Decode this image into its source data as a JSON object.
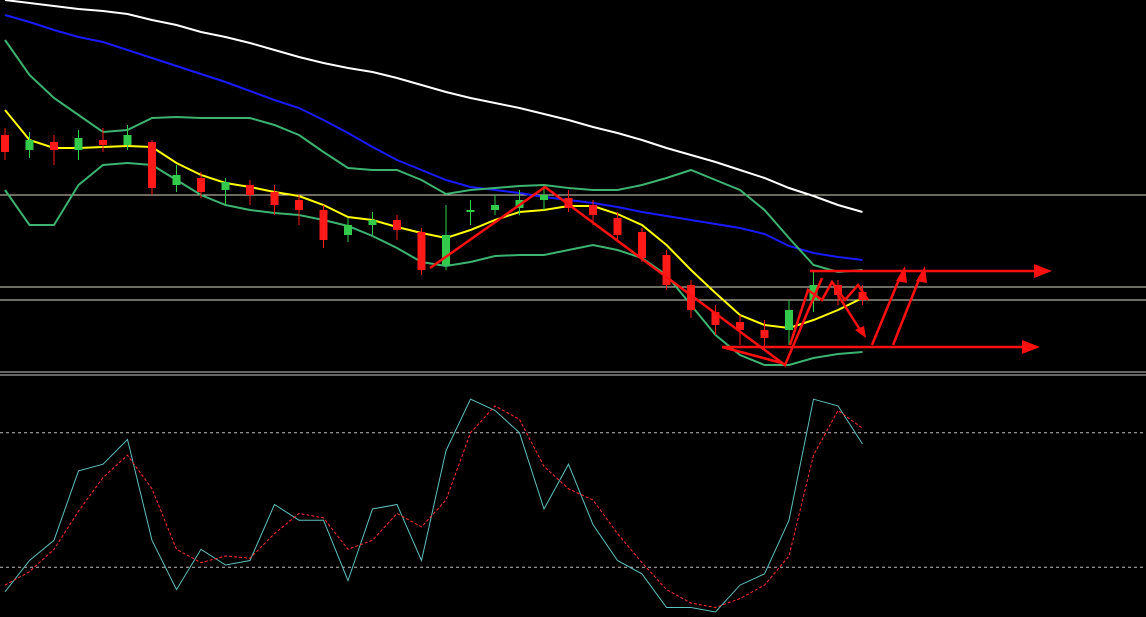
{
  "chart_data": [
    {
      "type": "candlestick",
      "ylim": [
        0,
        375
      ],
      "open": [
        240,
        225,
        233,
        225,
        235,
        230,
        233,
        190,
        197,
        185,
        190,
        183,
        175,
        165,
        140,
        150,
        155,
        143,
        110,
        163,
        165,
        167,
        175,
        177,
        170,
        157,
        143,
        120,
        90,
        63,
        53,
        45,
        45,
        75,
        90,
        83
      ],
      "close": [
        223,
        235,
        225,
        237,
        230,
        240,
        187,
        200,
        183,
        193,
        180,
        170,
        165,
        135,
        150,
        155,
        145,
        105,
        140,
        165,
        170,
        175,
        180,
        167,
        160,
        140,
        117,
        90,
        65,
        50,
        45,
        37,
        65,
        90,
        80,
        75
      ],
      "high": [
        247,
        243,
        240,
        245,
        247,
        250,
        235,
        210,
        203,
        197,
        195,
        190,
        180,
        170,
        157,
        163,
        160,
        147,
        170,
        175,
        180,
        185,
        190,
        185,
        175,
        163,
        147,
        125,
        95,
        70,
        60,
        55,
        75,
        105,
        95,
        90
      ],
      "low": [
        215,
        217,
        210,
        215,
        223,
        225,
        180,
        183,
        177,
        170,
        170,
        160,
        150,
        127,
        133,
        140,
        135,
        100,
        105,
        150,
        160,
        160,
        165,
        163,
        150,
        135,
        113,
        85,
        57,
        40,
        30,
        25,
        30,
        63,
        70,
        70
      ],
      "up_color": "#33c94a",
      "down_color": "#ff1a1a",
      "series": [
        {
          "color": "#ffffff",
          "values": [
            375,
            372,
            369,
            366,
            364,
            361,
            355,
            350,
            343,
            338,
            332,
            325,
            318,
            312,
            307,
            303,
            297,
            290,
            283,
            277,
            272,
            267,
            261,
            255,
            248,
            242,
            235,
            227,
            220,
            213,
            205,
            197,
            187,
            179,
            170,
            163
          ]
        },
        {
          "color": "#1a1aff",
          "values": [
            360,
            353,
            345,
            338,
            333,
            325,
            317,
            309,
            301,
            293,
            284,
            275,
            267,
            255,
            242,
            228,
            215,
            205,
            195,
            188,
            185,
            182,
            178,
            175,
            172,
            168,
            163,
            159,
            155,
            151,
            147,
            141,
            129,
            122,
            118,
            115
          ]
        },
        {
          "color": "#3cb371",
          "values": [
            335,
            300,
            277,
            260,
            243,
            245,
            257,
            258,
            257,
            257,
            257,
            250,
            240,
            223,
            207,
            205,
            205,
            195,
            181,
            185,
            187,
            189,
            190,
            187,
            185,
            185,
            190,
            197,
            205,
            195,
            185,
            165,
            137,
            110,
            103,
            105
          ]
        },
        {
          "color": "#3cb371",
          "values": [
            185,
            150,
            150,
            190,
            210,
            212,
            210,
            195,
            180,
            170,
            165,
            162,
            160,
            155,
            149,
            139,
            127,
            113,
            109,
            113,
            119,
            120,
            120,
            125,
            130,
            125,
            117,
            100,
            70,
            40,
            20,
            10,
            10,
            17,
            21,
            23
          ]
        },
        {
          "color": "#ffff00",
          "values": [
            265,
            235,
            227,
            227,
            228,
            229,
            228,
            212,
            200,
            192,
            188,
            183,
            179,
            170,
            158,
            155,
            148,
            142,
            137,
            145,
            155,
            163,
            165,
            169,
            169,
            161,
            150,
            130,
            105,
            82,
            60,
            50,
            47,
            55,
            65,
            77
          ]
        }
      ],
      "levels": [
        180,
        88,
        75
      ],
      "level_color": "#d8d8c0"
    },
    {
      "type": "line",
      "ylim": [
        0,
        100
      ],
      "levels": [
        80,
        20
      ],
      "level_color": "#bbbbbb",
      "series": [
        {
          "color": "#5fbfbf",
          "values": [
            9,
            23,
            32,
            63,
            66,
            77,
            32,
            10,
            28,
            21,
            23,
            48,
            41,
            41,
            14,
            46,
            48,
            23,
            72,
            95,
            90,
            80,
            46,
            66,
            39,
            23,
            17,
            2,
            2,
            0,
            12,
            17,
            41,
            95,
            92,
            75
          ]
        },
        {
          "color": "#ff3030",
          "dashed": true,
          "values": [
            12,
            18,
            28,
            45,
            60,
            70,
            55,
            28,
            22,
            25,
            24,
            35,
            44,
            42,
            28,
            32,
            44,
            38,
            50,
            80,
            92,
            86,
            65,
            55,
            50,
            35,
            22,
            10,
            4,
            2,
            6,
            12,
            25,
            70,
            90,
            82
          ]
        }
      ]
    }
  ]
}
